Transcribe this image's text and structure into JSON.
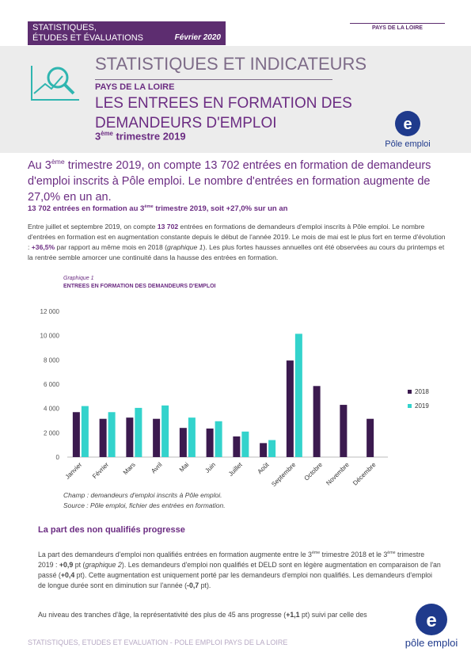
{
  "header": {
    "series_line_1": "STATISTIQUES,",
    "series_line_2": "ÉTUDES ET ÉVALUATIONS",
    "date": "Février 2020",
    "region": "PAYS DE LA LOIRE"
  },
  "banner": {
    "title": "STATISTIQUES ET INDICATEURS",
    "region": "PAYS DE LA LOIRE",
    "headline_1": "LES ENTREES EN FORMATION DES",
    "headline_2": "DEMANDEURS D'EMPLOI",
    "period": [
      "3",
      "ème",
      " trimestre 2019"
    ],
    "logo": "Pôle emploi"
  },
  "intro": [
    "Au 3",
    "ème",
    " trimestre 2019, on compte 13 702 entrées en formation de demandeurs d'emploi inscrits à Pôle emploi. Le nombre d'entrées en formation augmente de 27,0% en un an."
  ],
  "section_1": {
    "heading": [
      "13 702 entrées en formation au 3",
      "ème",
      " trimestre 2019, soit +27,0% sur un an"
    ],
    "paragraph": [
      "Entre juillet et septembre 2019, on compte ",
      "13 702",
      " entrées en formations de demandeurs d'emploi inscrits à Pôle emploi. Le nombre d'entrées en formation est en augmentation constante depuis le début de l'année 2019. Le mois de mai est le plus fort en terme d'évolution : ",
      "+36,5%",
      " par rapport au même mois en 2018 (",
      "graphique 1",
      "). Les plus fortes hausses annuelles ont été observées au cours du printemps et la rentrée semble amorcer une continuité dans la hausse des entrées en formation."
    ]
  },
  "chart_data": {
    "type": "bar",
    "caption": "Graphique 1",
    "title": "ENTREES EN FORMATION DES DEMANDEURS D'EMPLOI",
    "categories": [
      "Janvier",
      "Février",
      "Mars",
      "Avril",
      "Mai",
      "Juin",
      "Juillet",
      "Août",
      "Septembre",
      "Octobre",
      "Novembre",
      "Décembre"
    ],
    "series": [
      {
        "name": "2018",
        "color": "#3b1a4f",
        "values": [
          3700,
          3150,
          3250,
          3150,
          2400,
          2350,
          1700,
          1150,
          7950,
          5850,
          4300,
          3150
        ]
      },
      {
        "name": "2019",
        "color": "#33d3cc",
        "values": [
          4200,
          3700,
          4050,
          4250,
          3250,
          2950,
          2100,
          1400,
          10150,
          null,
          null,
          null
        ]
      }
    ],
    "ylim": [
      0,
      12000
    ],
    "yticks": [
      0,
      {
        "value": 2000,
        "label": "2 000"
      },
      {
        "value": 4000,
        "label": "4 000"
      },
      {
        "value": 6000,
        "label": "6 000"
      },
      {
        "value": 8000,
        "label": "8 000"
      },
      {
        "value": 10000,
        "label": "10 000"
      },
      {
        "value": 12000,
        "label": "12 000"
      }
    ],
    "grid": false,
    "legend": "right",
    "note": "Champ : demandeurs d'emploi inscrits à Pôle emploi.",
    "source": "Source : Pôle emploi, fichier des entrées en formation."
  },
  "section_2": {
    "heading": "La part des non qualifiés progresse",
    "paragraph_1": [
      "La part des demandeurs d'emploi non qualifiés entrées en formation augmente entre le 3",
      "ème",
      " trimestre 2018 et le 3",
      "ème",
      " trimestre 2019 : ",
      "+0,9",
      " pt (",
      "graphique 2",
      ").  Les demandeurs d'emploi non qualifiés et  DELD  sont en légère augmentation en comparaison de l'an passé (",
      "+0,4",
      " pt). Cette augmentation est uniquement porté par les demandeurs d'emploi non qualifiés. Les demandeurs d'emploi de longue durée  sont en diminution sur l'année (",
      "-0,7",
      " pt)."
    ],
    "paragraph_2": [
      "Au niveau des tranches d'âge, la représentativité des plus de 45 ans progresse (",
      "+1,1",
      " pt) suivi par celle des"
    ]
  },
  "footer": {
    "text": "STATISTIQUES, ETUDES ET EVALUATION - POLE EMPLOI PAYS DE LA LOIRE",
    "logo": "pôle emploi"
  }
}
